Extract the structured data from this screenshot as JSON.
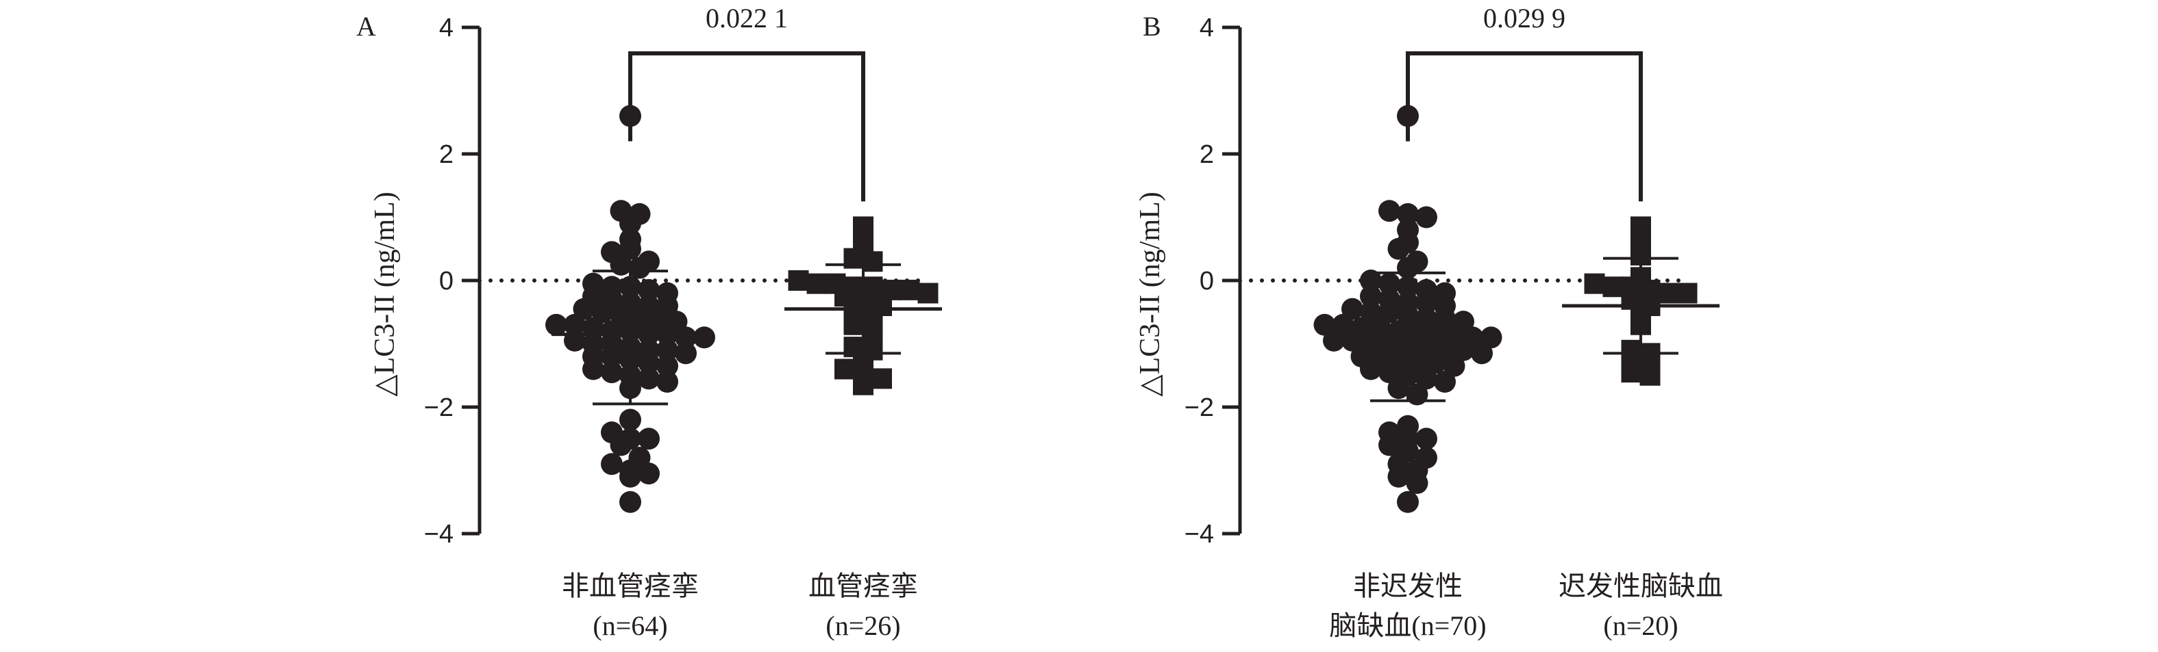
{
  "chart_data": [
    {
      "type": "scatter",
      "panel": "A",
      "ylabel": "△LC3-II (ng/mL)",
      "ylim": [
        -4,
        4
      ],
      "yticks": [
        "4",
        "2",
        "0",
        "−2",
        "−4"
      ],
      "y_tick_values": [
        4,
        2,
        0,
        -2,
        -4
      ],
      "reference_line_y": 0,
      "p_value": "0.022 1",
      "groups": [
        {
          "label_lines": [
            "非血管痉挛",
            "(n=64)"
          ],
          "marker": "circle",
          "mean": -0.85,
          "sd_low": -1.95,
          "sd_high": 0.15,
          "values": [
            2.6,
            1.1,
            1.05,
            0.9,
            0.65,
            0.45,
            0.5,
            0.3,
            0.25,
            0.2,
            -0.05,
            -0.1,
            -0.1,
            -0.15,
            -0.2,
            -0.25,
            -0.3,
            -0.35,
            -0.4,
            -0.4,
            -0.45,
            -0.5,
            -0.55,
            -0.6,
            -0.6,
            -0.65,
            -0.7,
            -0.7,
            -0.75,
            -0.8,
            -0.8,
            -0.85,
            -0.85,
            -0.9,
            -0.9,
            -0.95,
            -1.0,
            -1.0,
            -1.05,
            -1.1,
            -1.1,
            -1.15,
            -1.2,
            -1.2,
            -1.25,
            -1.3,
            -1.35,
            -1.4,
            -1.45,
            -1.5,
            -1.55,
            -1.6,
            -1.7,
            -2.2,
            -2.4,
            -2.5,
            -2.5,
            -2.6,
            -2.8,
            -2.9,
            -3.0,
            -3.05,
            -3.1,
            -3.5
          ]
        },
        {
          "label_lines": [
            "血管痉挛",
            "(n=26)"
          ],
          "marker": "square",
          "mean": -0.45,
          "sd_low": -1.15,
          "sd_high": 0.25,
          "values": [
            0.85,
            0.55,
            0.35,
            0.3,
            0.0,
            -0.05,
            -0.05,
            -0.1,
            -0.1,
            -0.15,
            -0.15,
            -0.2,
            -0.25,
            -0.3,
            -0.4,
            -0.5,
            -0.6,
            -0.7,
            -0.8,
            -1.05,
            -1.1,
            -1.2,
            -1.4,
            -1.45,
            -1.55,
            -1.65
          ]
        }
      ]
    },
    {
      "type": "scatter",
      "panel": "B",
      "ylabel": "△LC3-II (ng/mL)",
      "ylim": [
        -4,
        4
      ],
      "yticks": [
        "4",
        "2",
        "0",
        "−2",
        "−4"
      ],
      "y_tick_values": [
        4,
        2,
        0,
        -2,
        -4
      ],
      "reference_line_y": 0,
      "p_value": "0.029 9",
      "groups": [
        {
          "label_lines": [
            "非迟发性",
            "脑缺血(n=70)"
          ],
          "marker": "circle",
          "mean": -0.85,
          "sd_low": -1.9,
          "sd_high": 0.12,
          "values": [
            2.6,
            1.1,
            1.05,
            1.0,
            0.8,
            0.6,
            0.5,
            0.3,
            0.2,
            0.0,
            -0.05,
            -0.1,
            -0.15,
            -0.2,
            -0.25,
            -0.3,
            -0.35,
            -0.35,
            -0.4,
            -0.45,
            -0.5,
            -0.5,
            -0.55,
            -0.6,
            -0.6,
            -0.65,
            -0.7,
            -0.7,
            -0.75,
            -0.75,
            -0.8,
            -0.8,
            -0.85,
            -0.85,
            -0.9,
            -0.9,
            -0.95,
            -0.95,
            -1.0,
            -1.0,
            -1.05,
            -1.05,
            -1.1,
            -1.1,
            -1.15,
            -1.2,
            -1.2,
            -1.25,
            -1.3,
            -1.3,
            -1.35,
            -1.4,
            -1.45,
            -1.5,
            -1.55,
            -1.6,
            -1.7,
            -1.8,
            -2.3,
            -2.4,
            -2.5,
            -2.5,
            -2.6,
            -2.7,
            -2.8,
            -2.9,
            -3.0,
            -3.1,
            -3.2,
            -3.5
          ]
        },
        {
          "label_lines": [
            "迟发性脑缺血",
            "(n=20)"
          ],
          "marker": "square",
          "mean": -0.4,
          "sd_low": -1.15,
          "sd_high": 0.35,
          "values": [
            0.85,
            0.55,
            0.4,
            0.05,
            -0.05,
            -0.1,
            -0.1,
            -0.15,
            -0.2,
            -0.2,
            -0.3,
            -0.4,
            -0.5,
            -0.7,
            -1.1,
            -1.15,
            -1.2,
            -1.3,
            -1.45,
            -1.5
          ]
        }
      ]
    }
  ]
}
